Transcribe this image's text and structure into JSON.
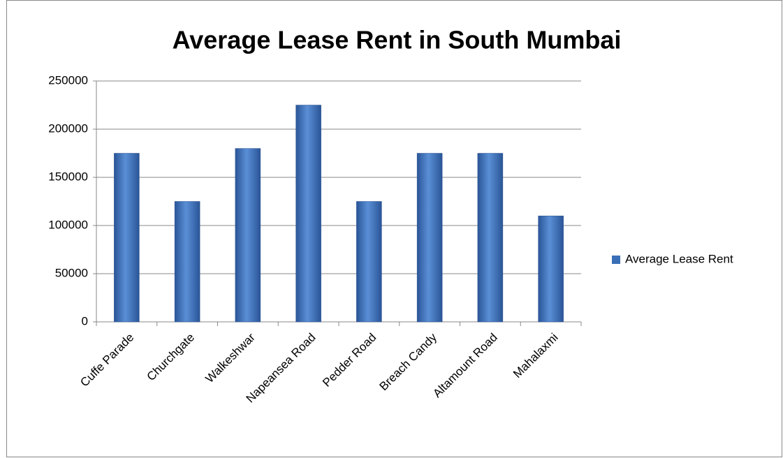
{
  "chart_data": {
    "type": "bar",
    "title": "Average Lease Rent in South Mumbai",
    "categories": [
      "Cuffe Parade",
      "Churchgate",
      "Walkeshwar",
      "Napeansea Road",
      "Pedder Road",
      "Breach Candy",
      "Altamount Road",
      "Mahalaxmi"
    ],
    "series": [
      {
        "name": "Average Lease Rent",
        "color": "#3a6fb8",
        "values": [
          175000,
          125000,
          180000,
          225000,
          125000,
          175000,
          175000,
          110000
        ]
      }
    ],
    "ylim": [
      0,
      250000
    ],
    "yticks": [
      0,
      50000,
      100000,
      150000,
      200000,
      250000
    ],
    "grid": true,
    "legend": "right"
  }
}
